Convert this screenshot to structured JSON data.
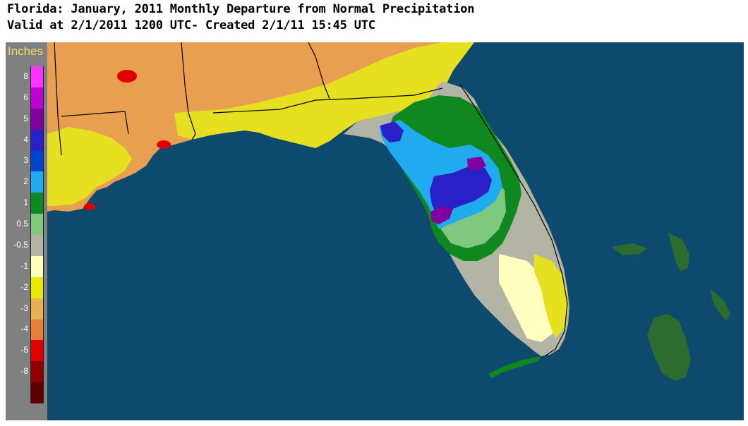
{
  "title": {
    "line1": "Florida: January, 2011 Monthly Departure from Normal Precipitation",
    "line2": "Valid at 2/1/2011 1200 UTC- Created 2/1/11 15:45 UTC"
  },
  "legend": {
    "title": "Inches",
    "items": [
      {
        "label": "8",
        "color": "#ff33ff"
      },
      {
        "label": "6",
        "color": "#c000d0"
      },
      {
        "label": "5",
        "color": "#8000a0"
      },
      {
        "label": "4",
        "color": "#2a20c8"
      },
      {
        "label": "3",
        "color": "#0044cc"
      },
      {
        "label": "2",
        "color": "#20aaf0"
      },
      {
        "label": "1",
        "color": "#108820"
      },
      {
        "label": "0.5",
        "color": "#80c880"
      },
      {
        "label": "-0.5",
        "color": "#b4b4a4"
      },
      {
        "label": "-1",
        "color": "#ffffc0"
      },
      {
        "label": "-2",
        "color": "#e8e800"
      },
      {
        "label": "-3",
        "color": "#e8b050"
      },
      {
        "label": "-4",
        "color": "#e8803a"
      },
      {
        "label": "-5",
        "color": "#e00000"
      },
      {
        "label": "-8",
        "color": "#900000"
      },
      {
        "label": "",
        "color": "#600000"
      }
    ]
  },
  "map": {
    "ocean_color": "#0d4a6e",
    "region": "Florida"
  }
}
